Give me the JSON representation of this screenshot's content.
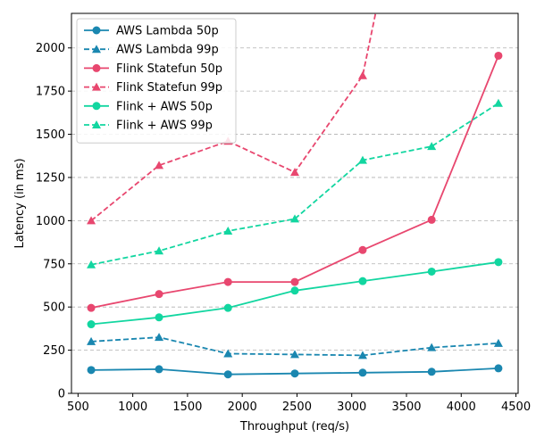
{
  "chart_data": {
    "type": "line",
    "title": "",
    "xlabel": "Throughput (req/s)",
    "ylabel": "Latency (in ms)",
    "xlim": [
      440,
      4520
    ],
    "ylim": [
      0,
      2200
    ],
    "xticks": [
      500,
      1000,
      1500,
      2000,
      2500,
      3000,
      3500,
      4000,
      4500
    ],
    "yticks": [
      0,
      250,
      500,
      750,
      1000,
      1250,
      1500,
      1750,
      2000
    ],
    "grid": "y-dashed",
    "legend_position": "top-left",
    "series": [
      {
        "name": "AWS Lambda 50p",
        "color": "#1a87b0",
        "dashed": false,
        "marker": "circle",
        "x": [
          620,
          1240,
          1870,
          2480,
          3100,
          3730,
          4340
        ],
        "y": [
          135,
          140,
          110,
          115,
          120,
          125,
          145
        ]
      },
      {
        "name": "AWS Lambda 99p",
        "color": "#1a87b0",
        "dashed": true,
        "marker": "triangle",
        "x": [
          620,
          1240,
          1870,
          2480,
          3100,
          3730,
          4340
        ],
        "y": [
          300,
          325,
          230,
          225,
          220,
          265,
          290
        ]
      },
      {
        "name": "Flink Statefun 50p",
        "color": "#e8476f",
        "dashed": false,
        "marker": "circle",
        "x": [
          620,
          1240,
          1870,
          2480,
          3100,
          3730,
          4340
        ],
        "y": [
          495,
          575,
          645,
          645,
          830,
          1005,
          1955
        ]
      },
      {
        "name": "Flink Statefun 99p",
        "color": "#e8476f",
        "dashed": true,
        "marker": "triangle",
        "x": [
          620,
          1240,
          1870,
          2480,
          3100,
          3250
        ],
        "y": [
          1000,
          1320,
          1460,
          1280,
          1840,
          2300
        ]
      },
      {
        "name": "Flink + AWS 50p",
        "color": "#12d6a0",
        "dashed": false,
        "marker": "circle",
        "x": [
          620,
          1240,
          1870,
          2480,
          3100,
          3730,
          4340
        ],
        "y": [
          400,
          440,
          495,
          595,
          650,
          705,
          760
        ]
      },
      {
        "name": "Flink + AWS 99p",
        "color": "#12d6a0",
        "dashed": true,
        "marker": "triangle",
        "x": [
          620,
          1240,
          1870,
          2480,
          3100,
          3730,
          4340
        ],
        "y": [
          745,
          825,
          940,
          1010,
          1350,
          1430,
          1680
        ]
      }
    ]
  }
}
